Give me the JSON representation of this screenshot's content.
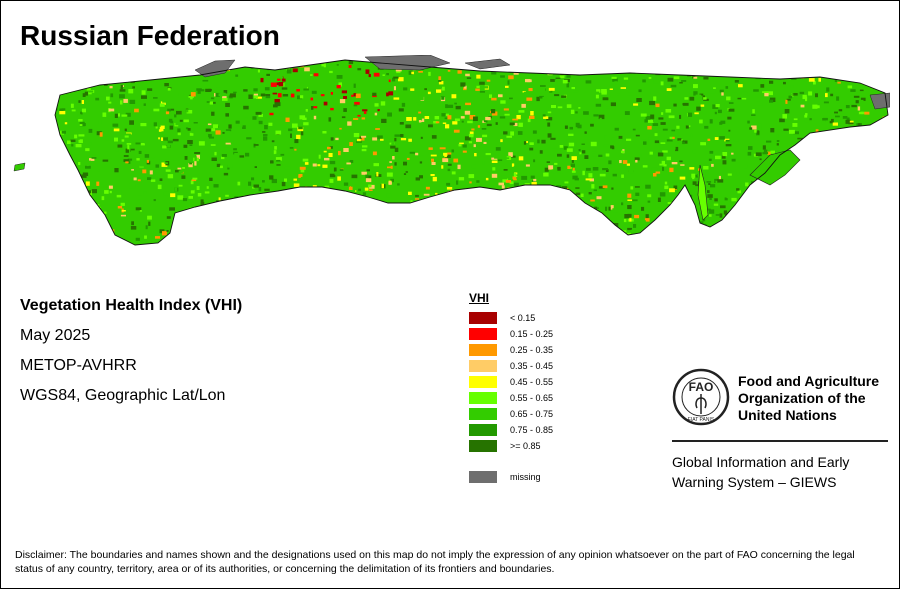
{
  "title": "Russian Federation",
  "info": {
    "index_name": "Vegetation Health Index (VHI)",
    "period": "May 2025",
    "sensor": "METOP-AVHRR",
    "projection": "WGS84, Geographic Lat/Lon"
  },
  "legend": {
    "title": "VHI",
    "classes": [
      {
        "label": "< 0.15",
        "color": "#a80000"
      },
      {
        "label": "0.15 - 0.25",
        "color": "#ff0000"
      },
      {
        "label": "0.25 - 0.35",
        "color": "#ff9900"
      },
      {
        "label": "0.35 - 0.45",
        "color": "#ffcc66"
      },
      {
        "label": "0.45 - 0.55",
        "color": "#ffff00"
      },
      {
        "label": "0.55 - 0.65",
        "color": "#66ff00"
      },
      {
        "label": "0.65 - 0.75",
        "color": "#33cc00"
      },
      {
        "label": "0.75 - 0.85",
        "color": "#229900"
      },
      {
        "label": ">= 0.85",
        "color": "#267300"
      }
    ],
    "missing": {
      "label": "missing",
      "color": "#6e6e6e"
    }
  },
  "organization": {
    "emblem_letters": "FAO",
    "emblem_motto": "FIAT PANIS",
    "name_lines": [
      "Food and Agriculture",
      "Organization of the",
      "United Nations"
    ],
    "system_lines": [
      "Global Information and Early",
      "Warning System – GIEWS"
    ]
  },
  "disclaimer": "Disclaimer: The boundaries and names shown and the designations used on this map do not imply the expression of any opinion whatsoever on the part of FAO concerning the legal status of any country, territory, area or of its authorities, or concerning the delimitation of its frontiers and boundaries."
}
